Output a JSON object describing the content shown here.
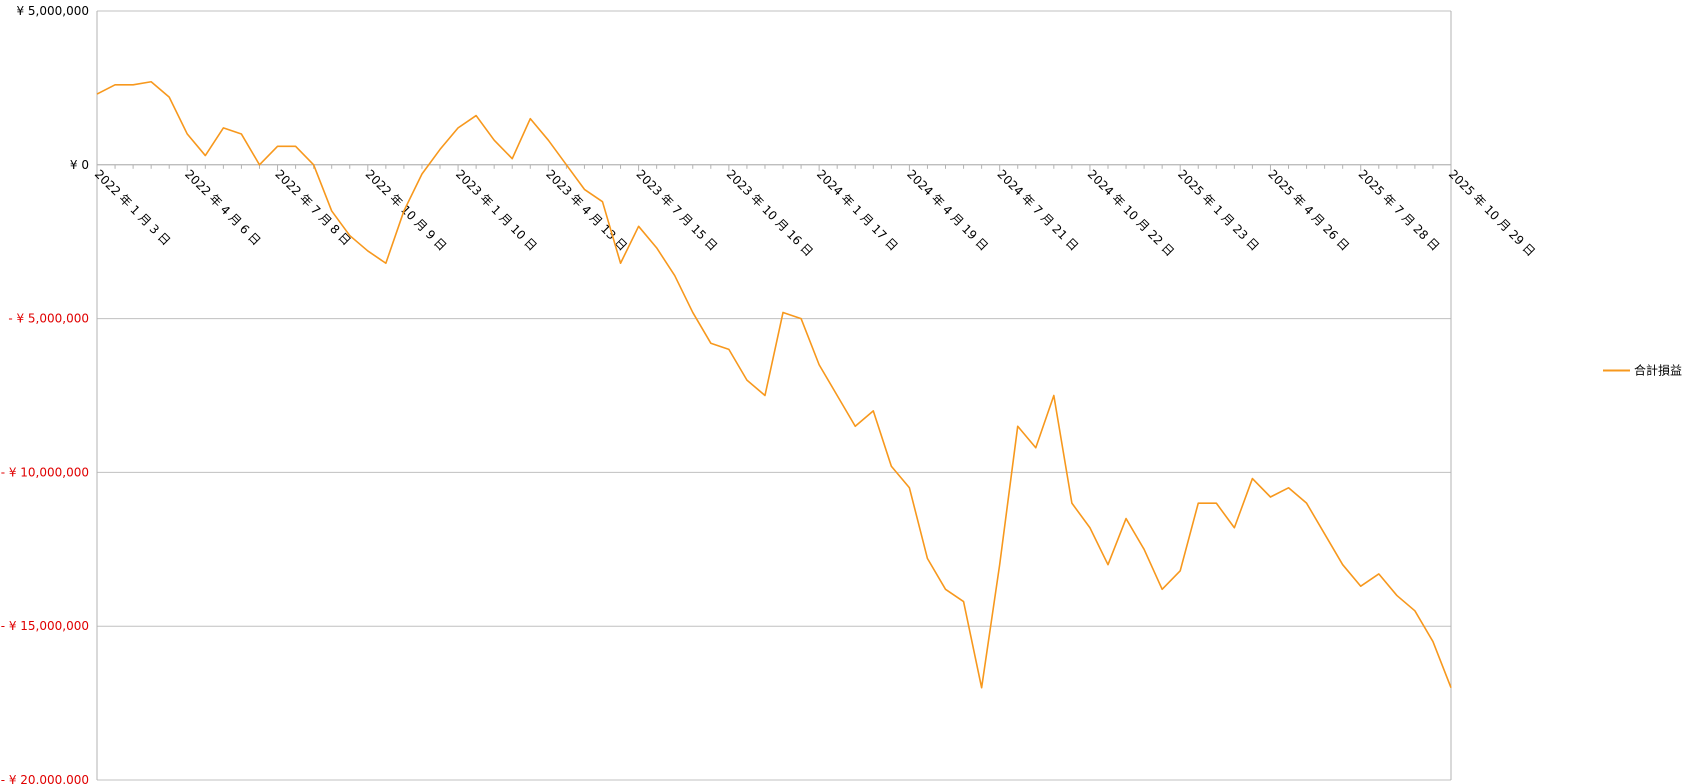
{
  "chart_data": {
    "type": "line",
    "categories": [
      "2022 年 1 月 3 日",
      null,
      null,
      null,
      null,
      "2022 年 4 月 6 日",
      null,
      null,
      null,
      null,
      "2022 年 7 月 8 日",
      null,
      null,
      null,
      null,
      "2022 年 10 月 9 日",
      null,
      null,
      null,
      null,
      "2023 年 1 月 10 日",
      null,
      null,
      null,
      null,
      "2023 年 4 月 13 日",
      null,
      null,
      null,
      null,
      "2023 年 7 月 15 日",
      null,
      null,
      null,
      null,
      "2023 年 10 月 16 日",
      null,
      null,
      null,
      null,
      "2024 年 1 月 17 日",
      null,
      null,
      null,
      null,
      "2024 年 4 月 19 日",
      null,
      null,
      null,
      null,
      "2024 年 7 月 21 日",
      null,
      null,
      null,
      null,
      "2024 年 10 月 22 日",
      null,
      null,
      null,
      null,
      "2025 年 1 月 23 日",
      null,
      null,
      null,
      null,
      "2025 年 4 月 26 日",
      null,
      null,
      null,
      null,
      "2025 年 7 月 28 日",
      null,
      null,
      null,
      null,
      "2025 年 10 月 29 日"
    ],
    "series": [
      {
        "name": "合計損益",
        "color": "#f7981d",
        "values": [
          2300000,
          2600000,
          2600000,
          2700000,
          2200000,
          1000000,
          300000,
          1200000,
          1000000,
          0,
          600000,
          600000,
          0,
          -1500000,
          -2300000,
          -2800000,
          -3200000,
          -1500000,
          -300000,
          500000,
          1200000,
          1600000,
          800000,
          200000,
          1500000,
          800000,
          0,
          -800000,
          -1200000,
          -3200000,
          -2000000,
          -2700000,
          -3600000,
          -4800000,
          -5800000,
          -6000000,
          -7000000,
          -7500000,
          -4800000,
          -5000000,
          -6500000,
          -7500000,
          -8500000,
          -8000000,
          -9800000,
          -10500000,
          -12800000,
          -13800000,
          -14200000,
          -17000000,
          -13000000,
          -8500000,
          -9200000,
          -7500000,
          -11000000,
          -11800000,
          -13000000,
          -11500000,
          -12500000,
          -13800000,
          -13200000,
          -11000000,
          -11000000,
          -11800000,
          -10200000,
          -10800000,
          -10500000,
          -11000000,
          -12000000,
          -13000000,
          -13700000,
          -13300000,
          -14000000,
          -14500000,
          -15500000,
          -17000000
        ]
      }
    ],
    "ylim": [
      -20000000,
      5000000
    ],
    "yticks": [
      {
        "value": -20000000,
        "label": "- ¥ 20,000,000"
      },
      {
        "value": -15000000,
        "label": "- ¥ 15,000,000"
      },
      {
        "value": -10000000,
        "label": "- ¥ 10,000,000"
      },
      {
        "value": -5000000,
        "label": "- ¥ 5,000,000"
      },
      {
        "value": 0,
        "label": "¥ 0"
      },
      {
        "value": 5000000,
        "label": "¥ 5,000,000"
      }
    ],
    "negative_label_color": "#e00000",
    "grid": true,
    "legend": "right"
  }
}
